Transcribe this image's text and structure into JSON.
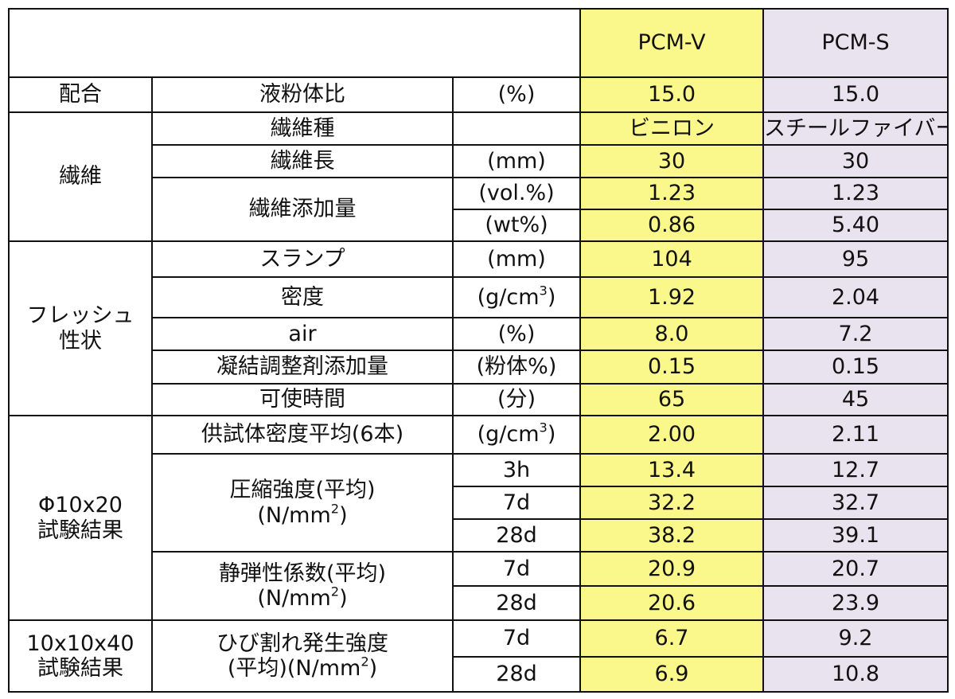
{
  "header": {
    "pcm_v": "PCM-V",
    "pcm_s": "PCM-S"
  },
  "rows": {
    "mix": {
      "category": "配合",
      "item": "液粉体比",
      "unit": "(%)",
      "v": "15.0",
      "s": "15.0"
    },
    "fiber": {
      "category": "繊維",
      "type": {
        "item": "繊維種",
        "unit": "",
        "v": "ビニロン",
        "s": "スチールファイバー"
      },
      "length": {
        "item": "繊維長",
        "unit": "(mm)",
        "v": "30",
        "s": "30"
      },
      "amount_item": "繊維添加量",
      "amount_vol": {
        "unit": "(vol.%)",
        "v": "1.23",
        "s": "1.23"
      },
      "amount_wt": {
        "unit": "(wt%)",
        "v": "0.86",
        "s": "5.40"
      }
    },
    "fresh": {
      "category_line1": "フレッシュ",
      "category_line2": "性状",
      "slump": {
        "item": "スランプ",
        "unit": "(mm)",
        "v": "104",
        "s": "95"
      },
      "density": {
        "item": "密度",
        "unit_base": "(g/cm",
        "unit_exp": "3",
        "unit_close": ")",
        "v": "1.92",
        "s": "2.04"
      },
      "air": {
        "item": "air",
        "unit": "(%)",
        "v": "8.0",
        "s": "7.2"
      },
      "retarder": {
        "item": "凝結調整剤添加量",
        "unit": "(粉体%)",
        "v": "0.15",
        "s": "0.15"
      },
      "worktime": {
        "item": "可使時間",
        "unit": "(分)",
        "v": "65",
        "s": "45"
      }
    },
    "phi": {
      "category_line1": "Φ10x20",
      "category_line2": "試験結果",
      "specimen_density": {
        "item": "供試体密度平均(6本)",
        "unit_base": "(g/cm",
        "unit_exp": "3",
        "unit_close": ")",
        "v": "2.00",
        "s": "2.11"
      },
      "compressive": {
        "item_line1": "圧縮強度(平均)",
        "item_line2_base": "(N/mm",
        "item_line2_exp": "2",
        "item_line2_close": ")",
        "rows": [
          {
            "age": "3h",
            "v": "13.4",
            "s": "12.7"
          },
          {
            "age": "7d",
            "v": "32.2",
            "s": "32.7"
          },
          {
            "age": "28d",
            "v": "38.2",
            "s": "39.1"
          }
        ]
      },
      "elastic": {
        "item_line1": "静弾性係数(平均)",
        "item_line2_base": "(N/mm",
        "item_line2_exp": "2",
        "item_line2_close": ")",
        "rows": [
          {
            "age": "7d",
            "v": "20.9",
            "s": "20.7"
          },
          {
            "age": "28d",
            "v": "20.6",
            "s": "23.9"
          }
        ]
      }
    },
    "prism": {
      "category_line1": "10x10x40",
      "category_line2": "試験結果",
      "crack": {
        "item_line1": "ひび割れ発生強度",
        "item_line2_base": "(平均)(N/mm",
        "item_line2_exp": "2",
        "item_line2_close": ")",
        "rows": [
          {
            "age": "7d",
            "v": "6.7",
            "s": "9.2"
          },
          {
            "age": "28d",
            "v": "6.9",
            "s": "10.8"
          }
        ]
      }
    }
  }
}
